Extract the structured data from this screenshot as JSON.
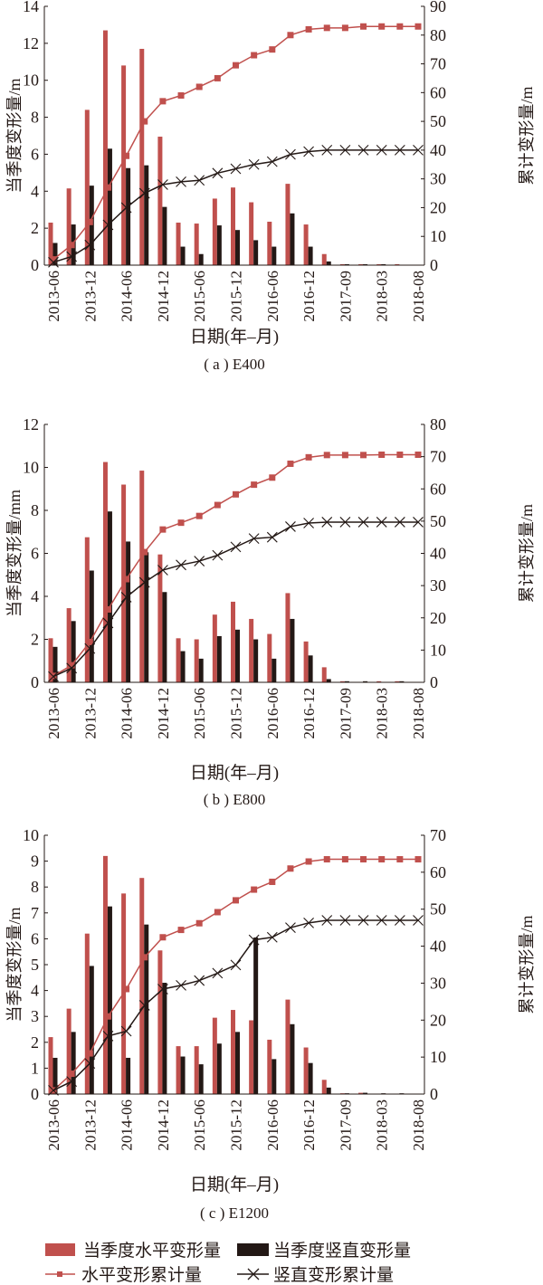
{
  "colors": {
    "horizontal": "#c0504d",
    "vertical": "#231815"
  },
  "legend": {
    "bar_horizontal": "当季度水平变形量",
    "bar_vertical": "当季度竖直变形量",
    "line_horizontal": "水平变形累计量",
    "line_vertical": "竖直变形累计量"
  },
  "chart_data": [
    {
      "type": "bar+line",
      "caption": "( a ) E400",
      "xlabel": "日期(年–月)",
      "ylabel_left": "当季度变形量/m",
      "ylabel_right": "累计变形量/m",
      "ylim_left": [
        0,
        14
      ],
      "yticks_left": [
        0,
        2,
        4,
        6,
        8,
        10,
        12,
        14
      ],
      "ylim_right": [
        0,
        90
      ],
      "yticks_right": [
        0,
        10,
        20,
        30,
        40,
        50,
        60,
        70,
        80,
        90
      ],
      "x_tick_labels": [
        "2013-06",
        "",
        "2013-12",
        "",
        "2014-06",
        "",
        "2014-12",
        "",
        "2015-06",
        "",
        "2015-12",
        "",
        "2016-06",
        "",
        "2016-12",
        "",
        "2017-09",
        "",
        "2018-03",
        "",
        "2018-08"
      ],
      "bars_horizontal": [
        2.3,
        4.15,
        8.4,
        12.7,
        10.8,
        11.7,
        6.95,
        2.3,
        2.25,
        3.6,
        4.2,
        3.4,
        2.35,
        4.4,
        2.2,
        0.6,
        0.05,
        0.05,
        0.05,
        0.05,
        0
      ],
      "bars_vertical": [
        1.2,
        2.2,
        4.3,
        6.3,
        5.25,
        5.4,
        3.15,
        1.0,
        0.6,
        2.15,
        1.9,
        1.35,
        1.0,
        2.8,
        1.0,
        0.2,
        0.05,
        0.05,
        0.05,
        0,
        0
      ],
      "cum_horizontal": [
        2,
        7,
        15,
        27,
        38,
        50,
        57,
        59,
        62,
        65,
        69.5,
        73,
        75,
        80,
        82,
        82.5,
        82.5,
        83,
        83,
        83,
        83
      ],
      "cum_vertical": [
        1,
        3,
        7,
        14,
        20,
        25,
        28,
        29,
        29.5,
        32,
        33.5,
        35,
        36,
        38.5,
        39.5,
        40,
        40,
        40,
        40,
        40,
        40
      ]
    },
    {
      "type": "bar+line",
      "caption": "( b ) E800",
      "xlabel": "日期(年–月)",
      "ylabel_left": "当季度变形量/mm",
      "ylabel_right": "累计变形量/m",
      "ylim_left": [
        0,
        12
      ],
      "yticks_left": [
        0,
        2,
        4,
        6,
        8,
        10,
        12
      ],
      "ylim_right": [
        0,
        80
      ],
      "yticks_right": [
        0,
        10,
        20,
        30,
        40,
        50,
        60,
        70,
        80
      ],
      "x_tick_labels": [
        "2013-06",
        "",
        "2013-12",
        "",
        "2014-06",
        "",
        "2014-12",
        "",
        "2015-06",
        "",
        "2015-12",
        "",
        "2016-06",
        "",
        "2016-12",
        "",
        "2017-09",
        "",
        "2018-03",
        "",
        "2018-08"
      ],
      "bars_horizontal": [
        2.05,
        3.45,
        6.75,
        10.25,
        9.2,
        9.85,
        5.95,
        2.05,
        2.0,
        3.15,
        3.75,
        2.95,
        2.25,
        4.15,
        1.9,
        0.7,
        0.05,
        0,
        0.05,
        0.05,
        0
      ],
      "bars_vertical": [
        1.65,
        2.85,
        5.2,
        7.95,
        6.55,
        6.05,
        4.2,
        1.45,
        1.1,
        2.15,
        2.45,
        2.0,
        1.1,
        2.95,
        1.25,
        0.15,
        0.05,
        0.05,
        0,
        0.05,
        0
      ],
      "cum_horizontal": [
        2,
        5.3,
        12.5,
        22.6,
        32,
        40.4,
        47.4,
        49.5,
        51.6,
        55,
        58.3,
        61.3,
        63.5,
        67.8,
        69.8,
        70.5,
        70.5,
        70.5,
        70.6,
        70.6,
        70.6
      ],
      "cum_vertical": [
        1.8,
        4.4,
        10.5,
        18.4,
        26.4,
        31,
        34.8,
        36.4,
        37.6,
        39.4,
        42,
        44.6,
        45,
        48.3,
        49.4,
        49.7,
        49.7,
        49.7,
        49.7,
        49.7,
        49.7
      ]
    },
    {
      "type": "bar+line",
      "caption": "( c ) E1200",
      "xlabel": "日期(年–月)",
      "ylabel_left": "当季度变形量/m",
      "ylabel_right": "累计变形量/m",
      "ylim_left": [
        0,
        10
      ],
      "yticks_left": [
        0,
        1,
        2,
        3,
        4,
        5,
        6,
        7,
        8,
        9,
        10
      ],
      "ylim_right": [
        0,
        70
      ],
      "yticks_right": [
        0,
        10,
        20,
        30,
        40,
        50,
        60,
        70
      ],
      "x_tick_labels": [
        "2013-06",
        "",
        "2013-12",
        "",
        "2014-06",
        "",
        "2014-12",
        "",
        "2015-06",
        "",
        "2015-12",
        "",
        "2016-06",
        "",
        "2016-12",
        "",
        "2017-09",
        "",
        "2018-03",
        "",
        "2018-08"
      ],
      "bars_horizontal": [
        2.2,
        3.3,
        6.2,
        9.2,
        7.75,
        8.35,
        5.55,
        1.85,
        1.85,
        2.95,
        3.25,
        2.85,
        2.1,
        3.65,
        1.8,
        0.55,
        0.03,
        0.05,
        0,
        0,
        0
      ],
      "bars_vertical": [
        1.4,
        2.4,
        4.95,
        7.25,
        1.4,
        6.55,
        4.3,
        1.45,
        1.15,
        1.95,
        2.4,
        6.05,
        1.35,
        2.7,
        1.2,
        0.25,
        0.03,
        0.05,
        0.03,
        0.03,
        0
      ],
      "cum_horizontal": [
        1,
        5.5,
        11,
        21,
        28.4,
        37,
        42.4,
        44.4,
        46.2,
        49.2,
        52.4,
        55.3,
        57.4,
        61,
        62.9,
        63.5,
        63.5,
        63.5,
        63.5,
        63.5,
        63.5
      ],
      "cum_vertical": [
        1,
        3.4,
        8.3,
        15.7,
        17,
        24,
        28.4,
        29.4,
        30.7,
        32.7,
        34.9,
        41.7,
        42.4,
        45,
        46.3,
        47,
        47,
        47,
        47,
        47,
        47
      ]
    }
  ]
}
